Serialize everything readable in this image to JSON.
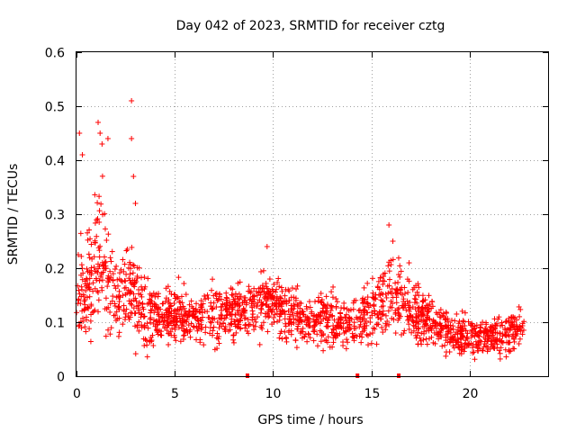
{
  "chart_data": {
    "type": "scatter",
    "title": "Day 042 of 2023, SRMTID for receiver cztg",
    "xlabel": "GPS time / hours",
    "ylabel": "SRMTID / TECUs",
    "xlim": [
      0,
      24
    ],
    "ylim": [
      0,
      0.6
    ],
    "x_ticks": [
      0,
      5,
      10,
      15,
      20
    ],
    "x_tick_labels": [
      "0",
      "5",
      "10",
      "15",
      "20"
    ],
    "y_ticks": [
      0,
      0.1,
      0.2,
      0.3,
      0.4,
      0.5,
      0.6
    ],
    "y_tick_labels": [
      "0",
      "0.1",
      "0.2",
      "0.3",
      "0.4",
      "0.5",
      "0.6"
    ],
    "grid": true,
    "marker": "+",
    "color": "#ff0000",
    "data_range_hours": [
      0,
      22.8
    ],
    "envelope": [
      {
        "t": 0.0,
        "center": 0.16,
        "spread": 0.09
      },
      {
        "t": 0.5,
        "center": 0.15,
        "spread": 0.09
      },
      {
        "t": 1.0,
        "center": 0.22,
        "spread": 0.14
      },
      {
        "t": 1.5,
        "center": 0.2,
        "spread": 0.11
      },
      {
        "t": 2.0,
        "center": 0.15,
        "spread": 0.07
      },
      {
        "t": 3.0,
        "center": 0.16,
        "spread": 0.1
      },
      {
        "t": 3.5,
        "center": 0.11,
        "spread": 0.06
      },
      {
        "t": 4.0,
        "center": 0.11,
        "spread": 0.05
      },
      {
        "t": 5.0,
        "center": 0.12,
        "spread": 0.05
      },
      {
        "t": 6.0,
        "center": 0.11,
        "spread": 0.05
      },
      {
        "t": 7.0,
        "center": 0.11,
        "spread": 0.06
      },
      {
        "t": 8.0,
        "center": 0.12,
        "spread": 0.05
      },
      {
        "t": 9.0,
        "center": 0.13,
        "spread": 0.06
      },
      {
        "t": 10.0,
        "center": 0.14,
        "spread": 0.06
      },
      {
        "t": 11.0,
        "center": 0.11,
        "spread": 0.05
      },
      {
        "t": 12.0,
        "center": 0.1,
        "spread": 0.05
      },
      {
        "t": 13.0,
        "center": 0.11,
        "spread": 0.05
      },
      {
        "t": 14.0,
        "center": 0.09,
        "spread": 0.04
      },
      {
        "t": 15.0,
        "center": 0.12,
        "spread": 0.06
      },
      {
        "t": 16.0,
        "center": 0.16,
        "spread": 0.08
      },
      {
        "t": 17.0,
        "center": 0.12,
        "spread": 0.06
      },
      {
        "t": 18.0,
        "center": 0.1,
        "spread": 0.05
      },
      {
        "t": 19.0,
        "center": 0.08,
        "spread": 0.04
      },
      {
        "t": 20.0,
        "center": 0.07,
        "spread": 0.04
      },
      {
        "t": 21.0,
        "center": 0.07,
        "spread": 0.04
      },
      {
        "t": 22.0,
        "center": 0.08,
        "spread": 0.04
      },
      {
        "t": 22.8,
        "center": 0.09,
        "spread": 0.04
      }
    ],
    "outliers": [
      {
        "x": 0.15,
        "y": 0.45
      },
      {
        "x": 0.3,
        "y": 0.41
      },
      {
        "x": 1.1,
        "y": 0.47
      },
      {
        "x": 1.2,
        "y": 0.45
      },
      {
        "x": 1.3,
        "y": 0.43
      },
      {
        "x": 1.6,
        "y": 0.44
      },
      {
        "x": 2.8,
        "y": 0.51
      },
      {
        "x": 2.8,
        "y": 0.44
      },
      {
        "x": 2.9,
        "y": 0.37
      },
      {
        "x": 3.0,
        "y": 0.32
      },
      {
        "x": 9.7,
        "y": 0.24
      },
      {
        "x": 15.9,
        "y": 0.28
      },
      {
        "x": 16.1,
        "y": 0.25
      }
    ],
    "zero_points": [
      {
        "x": 8.7,
        "y": 0
      },
      {
        "x": 14.3,
        "y": 0
      },
      {
        "x": 16.4,
        "y": 0
      }
    ]
  }
}
